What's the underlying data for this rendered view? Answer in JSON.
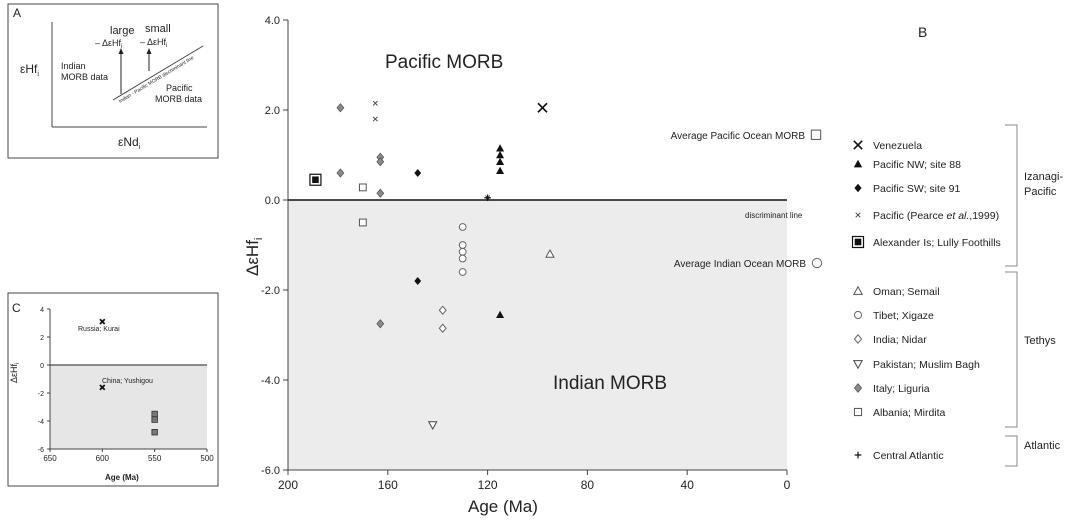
{
  "panel_a": {
    "letter": "A",
    "y_label": "εHf",
    "y_sub": "i",
    "x_label": "εNd",
    "x_sub": "i",
    "large": "large",
    "large_delta": "– ΔεHf",
    "large_sub": "i",
    "small": "small",
    "small_delta": "– ΔεHf",
    "small_sub": "i",
    "indian_1": "Indian",
    "indian_2": "MORB data",
    "pacific_1": "Pacific",
    "pacific_2": "MORB data",
    "line_label": "Indian - Pacific MORB discriminant line"
  },
  "panel_c": {
    "letter": "C",
    "y_label": "ΔεHf",
    "y_sub": "i",
    "x_label": "Age (Ma)",
    "label_russia": "Russia; Kurai",
    "label_china": "China; Yushigou",
    "y_ticks": [
      "4",
      "2",
      "0",
      "-2",
      "-4",
      "-6"
    ],
    "x_ticks": [
      "650",
      "600",
      "550",
      "500"
    ]
  },
  "chart_data": {
    "type": "scatter",
    "title": "",
    "panel_letter": "B",
    "xlabel": "Age (Ma)",
    "ylabel": "ΔεHf",
    "ylabel_sub": "i",
    "x_reversed": true,
    "xlim": [
      200,
      0
    ],
    "ylim": [
      -6.0,
      4.0
    ],
    "x_ticks": [
      "200",
      "160",
      "120",
      "80",
      "40",
      "0"
    ],
    "y_ticks": [
      "4.0",
      "2.0",
      "0.0",
      "-2.0",
      "-4.0",
      "-6.0"
    ],
    "y_tick_values": [
      4,
      2,
      0,
      -2,
      -4,
      -6
    ],
    "x_tick_values": [
      200,
      160,
      120,
      80,
      40,
      0
    ],
    "regions": {
      "upper": "Pacific MORB",
      "lower": "Indian MORB",
      "lower_fill": "#ececec"
    },
    "discriminant": {
      "y": 0.0,
      "label": "discriminant line"
    },
    "averages": [
      {
        "label": "Average Pacific Ocean MORB",
        "marker": "square-open",
        "y": 1.45
      },
      {
        "label": "Average Indian Ocean MORB",
        "marker": "circle-open",
        "y": -1.4
      }
    ],
    "series": [
      {
        "name": "Venezuela",
        "marker": "x-big",
        "group": "Izanagi-Pacific",
        "points": [
          [
            98,
            2.05
          ]
        ]
      },
      {
        "name": "Pacific NW; site 88",
        "marker": "triangle-filled",
        "group": "Izanagi-Pacific",
        "points": [
          [
            115,
            1.15
          ],
          [
            115,
            1.0
          ],
          [
            115,
            0.85
          ],
          [
            115,
            0.65
          ],
          [
            115,
            -2.55
          ]
        ]
      },
      {
        "name": "Pacific SW; site 91",
        "marker": "diamond-filled",
        "group": "Izanagi-Pacific",
        "points": [
          [
            148,
            0.6
          ],
          [
            148,
            -1.8
          ]
        ]
      },
      {
        "name": "Pacific (Pearce et al.,1999)",
        "marker": "x-small",
        "group": "Izanagi-Pacific",
        "points": [
          [
            165,
            2.15
          ],
          [
            165,
            1.8
          ],
          [
            120,
            0.05
          ]
        ]
      },
      {
        "name": "Alexander Is; Lully Foothills",
        "marker": "square-dot",
        "group": "Izanagi-Pacific",
        "points": [
          [
            189,
            0.45
          ]
        ]
      },
      {
        "name": "Oman; Semail",
        "marker": "triangle-open",
        "group": "Tethys",
        "points": [
          [
            95,
            -1.2
          ]
        ]
      },
      {
        "name": "Tibet; Xigaze",
        "marker": "circle-open",
        "group": "Tethys",
        "points": [
          [
            130,
            -0.6
          ],
          [
            130,
            -1.0
          ],
          [
            130,
            -1.15
          ],
          [
            130,
            -1.3
          ],
          [
            130,
            -1.6
          ]
        ]
      },
      {
        "name": "India; Nidar",
        "marker": "diamond-open",
        "group": "Tethys",
        "points": [
          [
            138,
            -2.45
          ],
          [
            138,
            -2.85
          ]
        ]
      },
      {
        "name": "Pakistan; Muslim Bagh",
        "marker": "triangle-down-open",
        "group": "Tethys",
        "points": [
          [
            142,
            -5.0
          ]
        ]
      },
      {
        "name": "Italy; Liguria",
        "marker": "diamond-gray",
        "group": "Tethys",
        "points": [
          [
            179,
            2.05
          ],
          [
            179,
            0.6
          ],
          [
            163,
            0.95
          ],
          [
            163,
            0.85
          ],
          [
            163,
            0.15
          ],
          [
            163,
            -2.75
          ]
        ]
      },
      {
        "name": "Albania; Mirdita",
        "marker": "square-open",
        "group": "Tethys",
        "points": [
          [
            170,
            0.28
          ],
          [
            170,
            -0.5
          ]
        ]
      },
      {
        "name": "Central Atlantic",
        "marker": "plus",
        "group": "Atlantic",
        "points": [
          [
            120,
            0.05
          ]
        ]
      }
    ],
    "legend": {
      "items": [
        {
          "label": "Venezuela",
          "marker": "x-big"
        },
        {
          "label_parts": [
            "Pacific NW; site 88"
          ],
          "marker": "triangle-filled"
        },
        {
          "label_parts": [
            "Pacific SW; site 91"
          ],
          "marker": "diamond-filled"
        },
        {
          "label_parts": [
            "Pacific (Pearce ",
            "et al.",
            ",1999)"
          ],
          "marker": "x-small"
        },
        {
          "label_parts": [
            "Alexander Is; Lully Foothills"
          ],
          "marker": "square-dot"
        },
        {
          "label_parts": [
            "Oman; Semail"
          ],
          "marker": "triangle-open"
        },
        {
          "label_parts": [
            "Tibet; Xigaze"
          ],
          "marker": "circle-open"
        },
        {
          "label_parts": [
            "India; Nidar"
          ],
          "marker": "diamond-open"
        },
        {
          "label_parts": [
            "Pakistan; Muslim Bagh"
          ],
          "marker": "triangle-down-open"
        },
        {
          "label_parts": [
            "Italy; Liguria"
          ],
          "marker": "diamond-gray"
        },
        {
          "label_parts": [
            "Albania; Mirdita"
          ],
          "marker": "square-open"
        },
        {
          "label_parts": [
            "Central Atlantic"
          ],
          "marker": "plus"
        }
      ],
      "groups": [
        {
          "label_lines": [
            "Izanagi-",
            "Pacific"
          ]
        },
        {
          "label_lines": [
            "Tethys"
          ]
        },
        {
          "label_lines": [
            "Atlantic"
          ]
        }
      ]
    },
    "panel_c_series": [
      {
        "name": "Russia; Kurai",
        "marker": "x-bold",
        "points": [
          [
            600,
            3.1
          ],
          [
            600,
            -1.6
          ]
        ]
      },
      {
        "name": "China; Yushigou",
        "marker": "square-gray",
        "points": [
          [
            550,
            -3.5
          ],
          [
            550,
            -3.9
          ],
          [
            550,
            -4.8
          ]
        ]
      }
    ],
    "panel_c_xlim": [
      650,
      500
    ],
    "panel_c_ylim": [
      -6,
      4
    ],
    "panel_c_fill": "#e6e6e6"
  }
}
